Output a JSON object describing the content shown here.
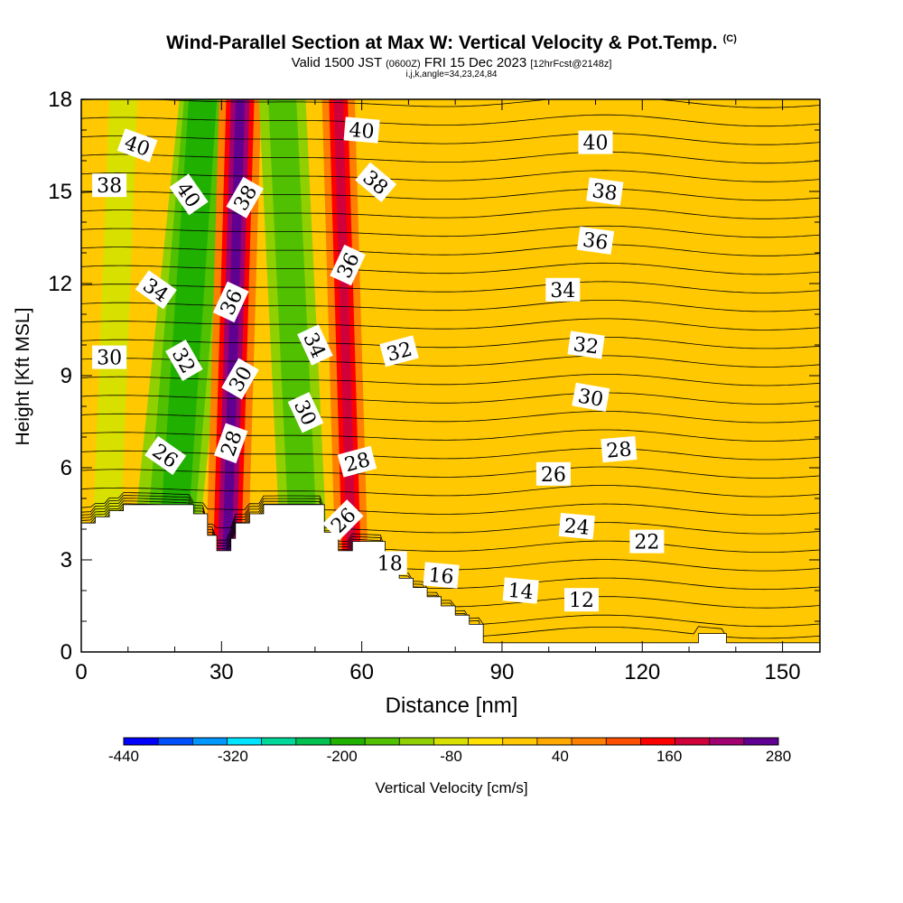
{
  "title": {
    "main": "Wind-Parallel Section at Max W: Vertical Velocity & Pot.Temp.",
    "tag": "(C)",
    "valid_a": "Valid 1500 JST",
    "valid_z": "(0600Z)",
    "valid_b": "FRI 15 Dec 2023",
    "fcst": "[12hrFcst@2148z]",
    "indices": "i,j,k,angle=34,23,24,84"
  },
  "chart_data": {
    "type": "contour",
    "xlabel": "Distance [nm]",
    "ylabel": "Height [Kft MSL]",
    "xlim": [
      0,
      158
    ],
    "ylim": [
      0,
      18
    ],
    "x_ticks": [
      0,
      30,
      60,
      90,
      120,
      150
    ],
    "y_ticks": [
      0,
      3,
      6,
      9,
      12,
      15,
      18
    ],
    "terrain": {
      "x": [
        0,
        3,
        3,
        6,
        6,
        9,
        9,
        24,
        24,
        27,
        27,
        29,
        29,
        32,
        32,
        33,
        33,
        36,
        36,
        39,
        39,
        52,
        52,
        55,
        55,
        58,
        58,
        65,
        65,
        68,
        68,
        71,
        71,
        74,
        74,
        77,
        77,
        80,
        80,
        83,
        83,
        86,
        86,
        132,
        132,
        138,
        138,
        158
      ],
      "y": [
        4.2,
        4.2,
        4.4,
        4.4,
        4.6,
        4.6,
        4.8,
        4.8,
        4.5,
        4.5,
        3.8,
        3.8,
        3.3,
        3.3,
        3.7,
        3.7,
        4.2,
        4.2,
        4.5,
        4.5,
        4.8,
        4.8,
        3.9,
        3.9,
        3.3,
        3.3,
        3.6,
        3.6,
        2.6,
        2.6,
        2.4,
        2.4,
        2.1,
        2.1,
        1.8,
        1.8,
        1.5,
        1.5,
        1.2,
        1.2,
        0.9,
        0.9,
        0.3,
        0.3,
        0.6,
        0.6,
        0.3,
        0.3
      ]
    },
    "velocity_bands": [
      {
        "x_base": 5,
        "x_top": 9,
        "width": 6,
        "value": -80
      },
      {
        "x_base": 17,
        "x_top": 28,
        "width": 14,
        "value": -120
      },
      {
        "x_base": 18,
        "x_top": 27,
        "width": 10,
        "value": -160
      },
      {
        "x_base": 19,
        "x_top": 26,
        "width": 6,
        "value": -200
      },
      {
        "x_base": 31,
        "x_top": 34,
        "width": 9,
        "value": 80
      },
      {
        "x_base": 31,
        "x_top": 34,
        "width": 6,
        "value": 160
      },
      {
        "x_base": 31,
        "x_top": 34,
        "width": 4,
        "value": 240
      },
      {
        "x_base": 31,
        "x_top": 34,
        "width": 2,
        "value": 280
      },
      {
        "x_base": 48,
        "x_top": 43,
        "width": 10,
        "value": -120
      },
      {
        "x_base": 48,
        "x_top": 43,
        "width": 6,
        "value": -160
      },
      {
        "x_base": 58,
        "x_top": 55,
        "width": 7,
        "value": 80
      },
      {
        "x_base": 58,
        "x_top": 55,
        "width": 4,
        "value": 160
      },
      {
        "x_base": 58,
        "x_top": 55,
        "width": 2,
        "value": 200
      },
      {
        "x_base": 148,
        "x_top": 155,
        "width": 10,
        "value": 0
      }
    ],
    "isentropes": {
      "levels": [
        12,
        13,
        14,
        15,
        16,
        17,
        18,
        19,
        20,
        21,
        22,
        23,
        24,
        25,
        26,
        27,
        28,
        29,
        30,
        31,
        32,
        33,
        34,
        35,
        36,
        37,
        38,
        39,
        40,
        41
      ],
      "labeled": [
        12,
        14,
        16,
        18,
        22,
        24,
        26,
        28,
        30,
        32,
        34,
        36,
        38,
        40
      ]
    },
    "contour_labels": [
      {
        "text": "40",
        "x": 12,
        "y": 16.5,
        "rot": 20
      },
      {
        "text": "38",
        "x": 6,
        "y": 15.2,
        "rot": 0
      },
      {
        "text": "40",
        "x": 23,
        "y": 14.9,
        "rot": 55
      },
      {
        "text": "38",
        "x": 35,
        "y": 14.8,
        "rot": -60
      },
      {
        "text": "40",
        "x": 60,
        "y": 17.0,
        "rot": 5
      },
      {
        "text": "38",
        "x": 63,
        "y": 15.3,
        "rot": 40
      },
      {
        "text": "40",
        "x": 110,
        "y": 16.6,
        "rot": 0
      },
      {
        "text": "38",
        "x": 112,
        "y": 15.0,
        "rot": 8
      },
      {
        "text": "36",
        "x": 110,
        "y": 13.4,
        "rot": 8
      },
      {
        "text": "36",
        "x": 57,
        "y": 12.6,
        "rot": -65
      },
      {
        "text": "34",
        "x": 16,
        "y": 11.8,
        "rot": 35
      },
      {
        "text": "36",
        "x": 32,
        "y": 11.4,
        "rot": -65
      },
      {
        "text": "34",
        "x": 103,
        "y": 11.8,
        "rot": 0
      },
      {
        "text": "34",
        "x": 50,
        "y": 10.0,
        "rot": 65
      },
      {
        "text": "32",
        "x": 68,
        "y": 9.8,
        "rot": -15
      },
      {
        "text": "30",
        "x": 6,
        "y": 9.6,
        "rot": 0
      },
      {
        "text": "32",
        "x": 22,
        "y": 9.5,
        "rot": 60
      },
      {
        "text": "32",
        "x": 108,
        "y": 10.0,
        "rot": 8
      },
      {
        "text": "30",
        "x": 34,
        "y": 8.9,
        "rot": -60
      },
      {
        "text": "30",
        "x": 48,
        "y": 7.8,
        "rot": 65
      },
      {
        "text": "30",
        "x": 109,
        "y": 8.3,
        "rot": 10
      },
      {
        "text": "26",
        "x": 18,
        "y": 6.4,
        "rot": 35
      },
      {
        "text": "28",
        "x": 32,
        "y": 6.8,
        "rot": -70
      },
      {
        "text": "28",
        "x": 59,
        "y": 6.2,
        "rot": -15
      },
      {
        "text": "28",
        "x": 115,
        "y": 6.6,
        "rot": -5
      },
      {
        "text": "26",
        "x": 101,
        "y": 5.8,
        "rot": 0
      },
      {
        "text": "26",
        "x": 56,
        "y": 4.3,
        "rot": -45
      },
      {
        "text": "24",
        "x": 106,
        "y": 4.1,
        "rot": 5
      },
      {
        "text": "22",
        "x": 121,
        "y": 3.6,
        "rot": 0
      },
      {
        "text": "18",
        "x": 66,
        "y": 2.9,
        "rot": 0
      },
      {
        "text": "16",
        "x": 77,
        "y": 2.5,
        "rot": 5
      },
      {
        "text": "14",
        "x": 94,
        "y": 2.0,
        "rot": 5
      },
      {
        "text": "12",
        "x": 107,
        "y": 1.7,
        "rot": 0
      }
    ],
    "colorbar": {
      "label": "Vertical Velocity [cm/s]",
      "ticks": [
        -440,
        -320,
        -200,
        -80,
        40,
        160,
        280
      ],
      "levels": [
        -440,
        -400,
        -360,
        -320,
        -280,
        -240,
        -200,
        -160,
        -120,
        -80,
        -40,
        0,
        40,
        80,
        120,
        160,
        200,
        240,
        280
      ],
      "colors": [
        "#0000ff",
        "#0050ff",
        "#0098ff",
        "#00e4ff",
        "#00d89a",
        "#00c050",
        "#20b000",
        "#50c000",
        "#90d000",
        "#d8e000",
        "#ffe000",
        "#ffc800",
        "#ffa800",
        "#ff8000",
        "#ff5000",
        "#ff0000",
        "#d0003a",
        "#a00070",
        "#600090"
      ]
    }
  }
}
